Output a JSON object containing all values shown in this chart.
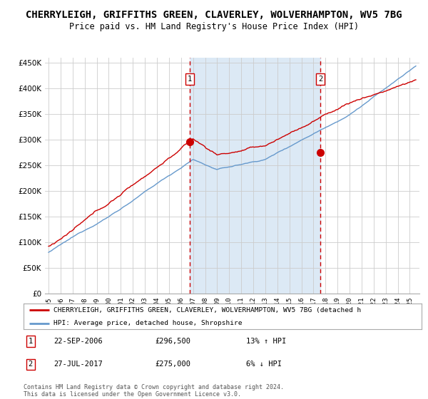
{
  "title": "CHERRYLEIGH, GRIFFITHS GREEN, CLAVERLEY, WOLVERHAMPTON, WV5 7BG",
  "subtitle": "Price paid vs. HM Land Registry's House Price Index (HPI)",
  "title_fontsize": 10,
  "subtitle_fontsize": 8.5,
  "background_color": "#ffffff",
  "plot_bg_color": "#ffffff",
  "shaded_region_color": "#dce9f5",
  "grid_color": "#cccccc",
  "ylim": [
    0,
    460000
  ],
  "yticks": [
    0,
    50000,
    100000,
    150000,
    200000,
    250000,
    300000,
    350000,
    400000,
    450000
  ],
  "sale1_date": 2006.72,
  "sale1_price": 296500,
  "sale2_date": 2017.56,
  "sale2_price": 275000,
  "red_line_color": "#cc0000",
  "blue_line_color": "#6699cc",
  "dashed_line_color": "#cc0000",
  "legend_red_label": "CHERRYLEIGH, GRIFFITHS GREEN, CLAVERLEY, WOLVERHAMPTON, WV5 7BG (detached h",
  "legend_blue_label": "HPI: Average price, detached house, Shropshire",
  "annotation1_date": "22-SEP-2006",
  "annotation1_price": "£296,500",
  "annotation1_hpi": "13% ↑ HPI",
  "annotation2_date": "27-JUL-2017",
  "annotation2_price": "£275,000",
  "annotation2_hpi": "6% ↓ HPI",
  "footer1": "Contains HM Land Registry data © Crown copyright and database right 2024.",
  "footer2": "This data is licensed under the Open Government Licence v3.0."
}
